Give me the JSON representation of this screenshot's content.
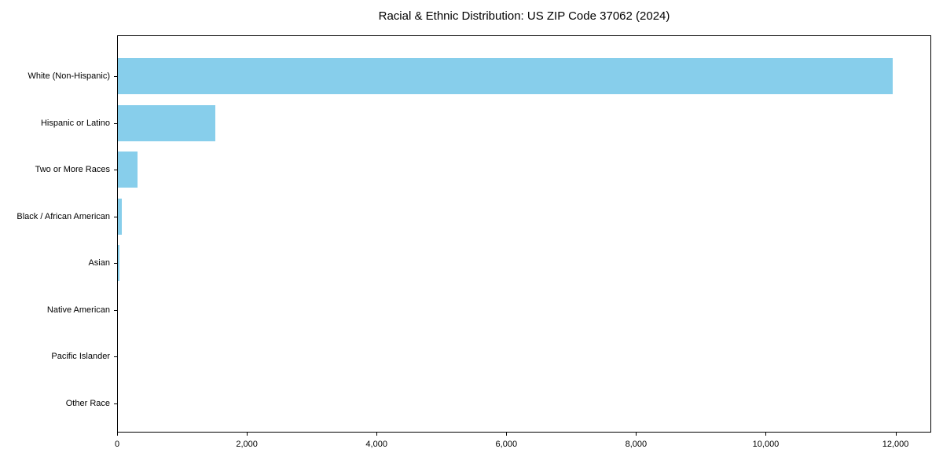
{
  "title": "Racial & Ethnic Distribution: US ZIP Code 37062 (2024)",
  "chart_data": {
    "type": "bar",
    "orientation": "horizontal",
    "title": "Racial & Ethnic Distribution: US ZIP Code 37062 (2024)",
    "xlabel": "",
    "ylabel": "",
    "categories": [
      "White (Non-Hispanic)",
      "Hispanic or Latino",
      "Two or More Races",
      "Black / African American",
      "Asian",
      "Native American",
      "Pacific Islander",
      "Other Race"
    ],
    "values": [
      11940,
      1500,
      305,
      55,
      30,
      0,
      0,
      0
    ],
    "xlim": [
      0,
      12550
    ],
    "x_ticks": [
      0,
      2000,
      4000,
      6000,
      8000,
      10000,
      12000
    ],
    "x_tick_labels": [
      "0",
      "2,000",
      "4,000",
      "6,000",
      "8,000",
      "10,000",
      "12,000"
    ],
    "bar_color": "#87CEEB",
    "frame_color": "#000000",
    "text_color": "#000000",
    "grid": false,
    "legend": "none"
  }
}
